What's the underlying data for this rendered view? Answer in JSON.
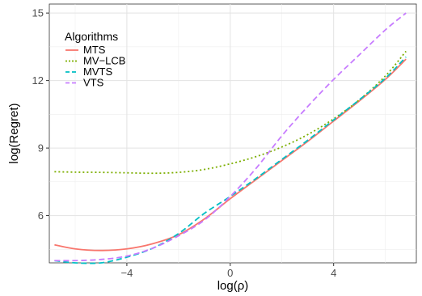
{
  "chart_data": {
    "type": "line",
    "title": "",
    "xlabel": "log(ρ)",
    "ylabel": "log(Regret)",
    "xlim": [
      -7.0,
      7.2
    ],
    "ylim": [
      3.9,
      15.4
    ],
    "xticks": [
      -4,
      0,
      4
    ],
    "xtick_labels": [
      "−4",
      "0",
      "4"
    ],
    "yticks": [
      6,
      9,
      12,
      15
    ],
    "ytick_labels": [
      "6",
      "9",
      "12",
      "15"
    ],
    "grid": true,
    "legend": {
      "title": "Algorithms",
      "placement": "top-left",
      "entries": [
        "MTS",
        "MV−LCB",
        "MVTS",
        "VTS"
      ]
    },
    "series": [
      {
        "name": "MTS",
        "color": "#F8766D",
        "dash": "solid",
        "x": [
          -6.8,
          -6.0,
          -5.0,
          -4.0,
          -3.0,
          -2.0,
          -1.0,
          0.0,
          1.0,
          2.0,
          3.0,
          4.0,
          5.0,
          6.0,
          6.8
        ],
        "y": [
          4.7,
          4.52,
          4.45,
          4.52,
          4.75,
          5.15,
          5.85,
          6.75,
          7.6,
          8.45,
          9.3,
          10.2,
          11.1,
          12.05,
          12.95
        ]
      },
      {
        "name": "MV−LCB",
        "color": "#7CAE00",
        "dash": "dotted",
        "x": [
          -6.8,
          -6.0,
          -5.0,
          -4.0,
          -3.0,
          -2.0,
          -1.0,
          0.0,
          1.0,
          2.0,
          3.0,
          4.0,
          5.0,
          6.0,
          6.8
        ],
        "y": [
          7.95,
          7.93,
          7.92,
          7.9,
          7.88,
          7.92,
          8.05,
          8.3,
          8.62,
          9.05,
          9.6,
          10.3,
          11.15,
          12.2,
          13.3
        ]
      },
      {
        "name": "MVTS",
        "color": "#00BFC4",
        "dash": "dashed",
        "x": [
          -6.8,
          -6.0,
          -5.0,
          -4.0,
          -3.0,
          -2.0,
          -1.0,
          0.0,
          1.0,
          2.0,
          3.0,
          4.0,
          5.0,
          6.0,
          6.8
        ],
        "y": [
          4.0,
          3.9,
          3.9,
          4.15,
          4.55,
          5.2,
          6.1,
          6.85,
          7.65,
          8.5,
          9.35,
          10.25,
          11.15,
          12.1,
          13.05
        ]
      },
      {
        "name": "VTS",
        "color": "#C77CFF",
        "dash": "dashed",
        "x": [
          -6.8,
          -6.0,
          -5.0,
          -4.0,
          -3.0,
          -2.0,
          -1.0,
          0.0,
          1.0,
          2.0,
          3.0,
          4.0,
          5.0,
          6.0,
          6.8
        ],
        "y": [
          4.0,
          4.0,
          4.05,
          4.2,
          4.55,
          5.1,
          5.8,
          6.85,
          8.1,
          9.55,
          10.85,
          12.05,
          13.15,
          14.25,
          15.0
        ]
      }
    ]
  }
}
